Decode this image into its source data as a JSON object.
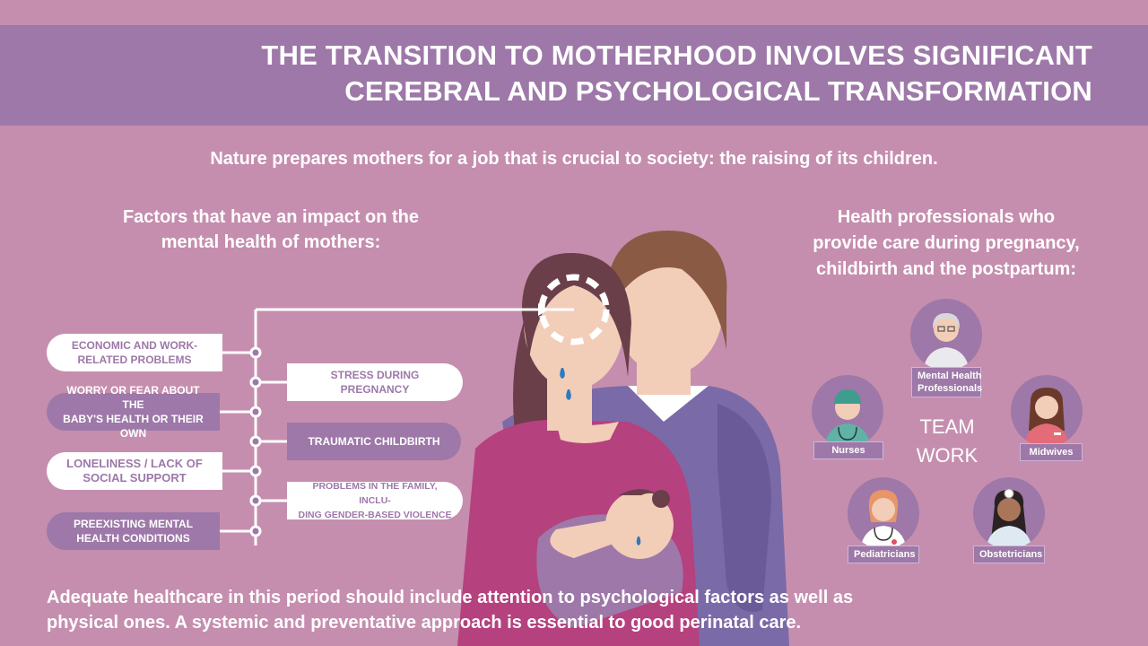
{
  "header": {
    "title_line1": "THE TRANSITION TO MOTHERHOOD INVOLVES SIGNIFICANT",
    "title_line2": "CEREBRAL AND PSYCHOLOGICAL TRANSFORMATION"
  },
  "subtitle": "Nature prepares mothers for a job that is crucial to society: the raising of its children.",
  "factors": {
    "title_line1": "Factors that have an impact on the",
    "title_line2": "mental health of mothers:",
    "left_items": [
      {
        "line1": "ECONOMIC AND WORK-",
        "line2": "RELATED PROBLEMS"
      },
      {
        "line1": "WORRY OR FEAR ABOUT THE",
        "line2": "BABY'S HEALTH OR THEIR OWN"
      },
      {
        "line1": "LONELINESS / LACK OF",
        "line2": "SOCIAL SUPPORT"
      },
      {
        "line1": "PREEXISTING MENTAL",
        "line2": "HEALTH CONDITIONS"
      }
    ],
    "right_items": [
      {
        "line1": "STRESS DURING",
        "line2": "PREGNANCY"
      },
      {
        "line1": "TRAUMATIC CHILDBIRTH",
        "line2": ""
      },
      {
        "line1": "PROBLEMS IN THE FAMILY, INCLU-",
        "line2": "DING GENDER-BASED VIOLENCE"
      }
    ]
  },
  "professionals": {
    "title_line1": "Health professionals who",
    "title_line2": "provide care during pregnancy,",
    "title_line3": "childbirth and the postpartum:",
    "team_line1": "TEAM",
    "team_line2": "WORK",
    "items": [
      {
        "label_line1": "Mental Health",
        "label_line2": "Professionals",
        "icon": "mental-health-professional-icon"
      },
      {
        "label_line1": "Nurses",
        "label_line2": "",
        "icon": "nurse-icon"
      },
      {
        "label_line1": "Midwives",
        "label_line2": "",
        "icon": "midwife-icon"
      },
      {
        "label_line1": "Pediatricians",
        "label_line2": "",
        "icon": "pediatrician-icon"
      },
      {
        "label_line1": "Obstetricians",
        "label_line2": "",
        "icon": "obstetrician-icon"
      }
    ]
  },
  "footer": {
    "line1": "Adequate healthcare in this period should include attention to psychological factors as well as",
    "line2": "physical ones.  A systemic and preventative approach is essential to good perinatal care."
  },
  "colors": {
    "background": "#c58eae",
    "banner": "#9d78a8",
    "white": "#ffffff",
    "mother_shirt": "#b5417e",
    "father_sweater": "#7b6aa8",
    "father_hair": "#8a5a45",
    "skin": "#f2cdb8"
  }
}
